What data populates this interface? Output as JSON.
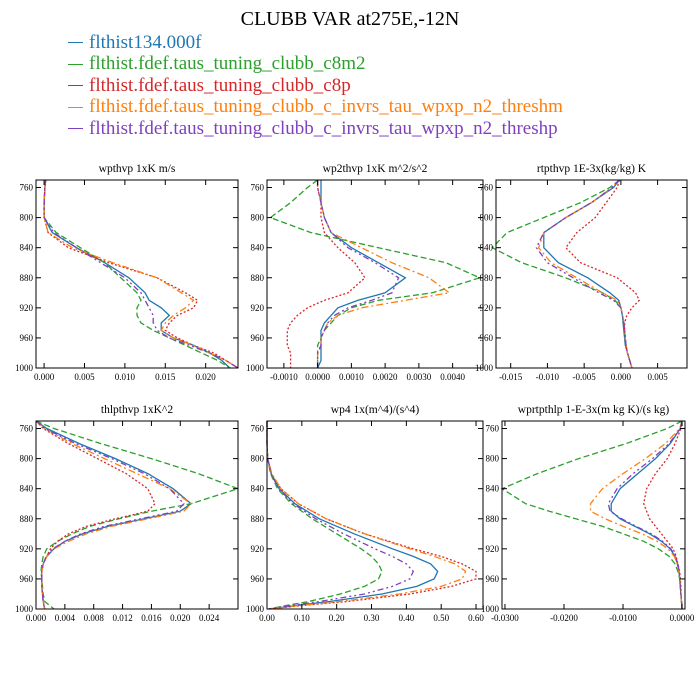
{
  "title": "CLUBB VAR at275E,-12N",
  "legend": [
    {
      "name": "flthist134.000f",
      "color": "#1f77b4"
    },
    {
      "name": "flthist.fdef.taus_tuning_clubb_c8m2",
      "color": "#2ca02c"
    },
    {
      "name": "flthist.fdef.taus_tuning_clubb_c8p",
      "color": "#d62728"
    },
    {
      "name": "flthist.fdef.taus_tuning_clubb_c_invrs_tau_wpxp_n2_threshm",
      "color": "#ff7f0e"
    },
    {
      "name": "flthist.fdef.taus_tuning_clubb_c_invrs_tau_wpxp_n2_threshp",
      "color": "#7f3fbf"
    }
  ],
  "chart_data": [
    {
      "type": "line",
      "title": "wpthvp  1xK m/s",
      "ylim": [
        1000,
        750
      ],
      "yticks": [
        "760",
        "800",
        "840",
        "880",
        "920",
        "960",
        "1000"
      ],
      "ytick_values": [
        760,
        800,
        840,
        880,
        920,
        960,
        1000
      ],
      "xlim": [
        -0.001,
        0.024
      ],
      "xticks": [
        "0.000",
        "0.005",
        "0.010",
        "0.015",
        "0.020"
      ],
      "xtick_values": [
        0.0,
        0.005,
        0.01,
        0.015,
        0.02
      ],
      "y": [
        750,
        760,
        780,
        800,
        820,
        840,
        860,
        880,
        900,
        910,
        920,
        930,
        940,
        950,
        960,
        970,
        980,
        990,
        1000
      ],
      "series": [
        {
          "values": [
            0.0002,
            0.0001,
            0.0,
            0.0,
            0.001,
            0.004,
            0.0075,
            0.0105,
            0.0125,
            0.013,
            0.0145,
            0.0155,
            0.0145,
            0.0145,
            0.016,
            0.0185,
            0.0205,
            0.022,
            0.023
          ]
        },
        {
          "values": [
            0.0002,
            0.0001,
            0.0,
            0.0,
            0.0015,
            0.0045,
            0.0075,
            0.0095,
            0.0115,
            0.012,
            0.0115,
            0.0115,
            0.012,
            0.0135,
            0.0155,
            0.0175,
            0.0195,
            0.0215,
            0.023
          ]
        },
        {
          "values": [
            0.0002,
            0.0001,
            0.0,
            0.0,
            0.0005,
            0.003,
            0.008,
            0.014,
            0.0175,
            0.019,
            0.0185,
            0.0165,
            0.0155,
            0.015,
            0.0165,
            0.0185,
            0.021,
            0.0225,
            0.024
          ]
        },
        {
          "values": [
            0.0002,
            0.0001,
            0.0,
            0.0,
            0.0005,
            0.0035,
            0.0085,
            0.014,
            0.017,
            0.0185,
            0.0175,
            0.016,
            0.015,
            0.0145,
            0.016,
            0.0185,
            0.0205,
            0.0225,
            0.024
          ]
        },
        {
          "values": [
            0.0002,
            0.0001,
            0.0,
            0.0,
            0.0012,
            0.004,
            0.007,
            0.01,
            0.012,
            0.0125,
            0.013,
            0.0135,
            0.0135,
            0.014,
            0.0155,
            0.018,
            0.0205,
            0.0225,
            0.024
          ]
        }
      ]
    },
    {
      "type": "line",
      "title": "wp2thvp  1xK m^2/s^2",
      "ylim": [
        1000,
        750
      ],
      "yticks": [
        "760",
        "800",
        "840",
        "880",
        "920",
        "960",
        "1000"
      ],
      "ytick_values": [
        760,
        800,
        840,
        880,
        920,
        960,
        1000
      ],
      "xlim": [
        -0.0015,
        0.0049
      ],
      "xticks": [
        "-0.0010",
        "0.0000",
        "0.0010",
        "0.0020",
        "0.0030",
        "0.0040"
      ],
      "xtick_values": [
        -0.001,
        0.0,
        0.001,
        0.002,
        0.003,
        0.004
      ],
      "y": [
        750,
        760,
        780,
        800,
        820,
        840,
        860,
        880,
        900,
        910,
        920,
        930,
        940,
        950,
        960,
        970,
        980,
        990,
        1000
      ],
      "series": [
        {
          "values": [
            0.0001,
            0.0001,
            0.0001,
            0.0002,
            0.0004,
            0.001,
            0.0018,
            0.0026,
            0.002,
            0.0012,
            0.0006,
            0.0004,
            0.0002,
            0.0001,
            0.0001,
            0.0001,
            0.0001,
            0.0001,
            0.0
          ]
        },
        {
          "values": [
            0.0,
            -0.0003,
            -0.0008,
            -0.0014,
            -0.0002,
            0.0018,
            0.0038,
            0.0048,
            0.0034,
            0.0018,
            0.001,
            0.0006,
            0.0004,
            0.0002,
            0.0001,
            0.0,
            0.0,
            0.0,
            0.0
          ]
        },
        {
          "values": [
            0.0,
            0.0,
            0.0001,
            0.0001,
            0.0002,
            0.0006,
            0.0011,
            0.0014,
            0.0009,
            0.0002,
            -0.0003,
            -0.0006,
            -0.0008,
            -0.0009,
            -0.0009,
            -0.0009,
            -0.0008,
            -0.0008,
            -0.0008
          ]
        },
        {
          "values": [
            0.0,
            0.0,
            0.0001,
            0.0002,
            0.0004,
            0.0013,
            0.0022,
            0.0033,
            0.0039,
            0.0026,
            0.0013,
            0.0006,
            0.0003,
            0.0002,
            0.0001,
            0.0001,
            0.0,
            0.0,
            0.0
          ]
        },
        {
          "values": [
            0.0,
            0.0,
            0.0001,
            0.0002,
            0.0004,
            0.0009,
            0.0017,
            0.0024,
            0.0022,
            0.0016,
            0.0009,
            0.0005,
            0.0003,
            0.0002,
            0.0001,
            0.0001,
            0.0,
            0.0,
            0.0
          ]
        }
      ]
    },
    {
      "type": "line",
      "title": "rtpthvp  1E-3x(kg/kg) K",
      "ylim": [
        1000,
        750
      ],
      "yticks": [
        "760",
        "800",
        "840",
        "880",
        "920",
        "960",
        "1000"
      ],
      "ytick_values": [
        760,
        800,
        840,
        880,
        920,
        960,
        1000
      ],
      "xlim": [
        -0.017,
        0.009
      ],
      "xticks": [
        "-0.015",
        "-0.010",
        "-0.005",
        "0.000",
        "0.005"
      ],
      "xtick_values": [
        -0.015,
        -0.01,
        -0.005,
        0.0,
        0.005
      ],
      "y": [
        750,
        760,
        780,
        800,
        820,
        840,
        860,
        880,
        900,
        910,
        920,
        930,
        940,
        950,
        960,
        970,
        980,
        990,
        1000
      ],
      "series": [
        {
          "values": [
            -0.0002,
            -0.001,
            -0.004,
            -0.0075,
            -0.0105,
            -0.0105,
            -0.0085,
            -0.0045,
            -0.0015,
            -0.0003,
            0.0,
            0.0002,
            0.0003,
            0.0004,
            0.0005,
            0.0006,
            0.0009,
            0.0012,
            0.0015
          ]
        },
        {
          "values": [
            -0.0002,
            -0.0015,
            -0.0055,
            -0.0105,
            -0.0155,
            -0.0175,
            -0.0135,
            -0.0075,
            -0.0025,
            -0.0008,
            0.0,
            0.0002,
            0.0004,
            0.0005,
            0.0006,
            0.0007,
            0.0009,
            0.0012,
            0.0015
          ]
        },
        {
          "values": [
            -0.0002,
            -0.0005,
            -0.002,
            -0.0035,
            -0.006,
            -0.0075,
            -0.0055,
            -0.0005,
            0.002,
            0.0025,
            0.0015,
            0.0008,
            0.0005,
            0.0005,
            0.0006,
            0.0007,
            0.0009,
            0.0012,
            0.0015
          ]
        },
        {
          "values": [
            -0.0002,
            -0.0012,
            -0.004,
            -0.0075,
            -0.0105,
            -0.0112,
            -0.0095,
            -0.006,
            -0.0025,
            -0.0005,
            0.0,
            0.0002,
            0.0004,
            0.0005,
            0.0006,
            0.0007,
            0.0009,
            0.0012,
            0.0015
          ]
        },
        {
          "values": [
            -0.0002,
            -0.0012,
            -0.004,
            -0.0075,
            -0.0105,
            -0.0115,
            -0.01,
            -0.0065,
            -0.003,
            -0.001,
            0.0,
            0.0002,
            0.0004,
            0.0005,
            0.0006,
            0.0007,
            0.0009,
            0.0012,
            0.0015
          ]
        }
      ]
    },
    {
      "type": "line",
      "title": "thlpthvp  1xK^2",
      "ylim": [
        1000,
        750
      ],
      "yticks": [
        "760",
        "800",
        "840",
        "880",
        "920",
        "960",
        "1000"
      ],
      "ytick_values": [
        760,
        800,
        840,
        880,
        920,
        960,
        1000
      ],
      "xlim": [
        0.0,
        0.028
      ],
      "xticks": [
        "0.000",
        "0.004",
        "0.008",
        "0.012",
        "0.016",
        "0.020",
        "0.024"
      ],
      "xtick_values": [
        0.0,
        0.004,
        0.008,
        0.012,
        0.016,
        0.02,
        0.024
      ],
      "y": [
        750,
        760,
        780,
        800,
        820,
        840,
        860,
        870,
        880,
        890,
        900,
        910,
        920,
        930,
        940,
        950,
        960,
        970,
        980,
        990,
        1000
      ],
      "series": [
        {
          "values": [
            0.0,
            0.0015,
            0.006,
            0.011,
            0.0155,
            0.019,
            0.0215,
            0.02,
            0.015,
            0.01,
            0.0065,
            0.004,
            0.0025,
            0.0015,
            0.001,
            0.0008,
            0.0008,
            0.0008,
            0.0009,
            0.001,
            0.0012
          ]
        },
        {
          "values": [
            0.0,
            0.0025,
            0.009,
            0.016,
            0.0225,
            0.028,
            0.0215,
            0.016,
            0.0115,
            0.0075,
            0.005,
            0.003,
            0.0015,
            0.001,
            0.0008,
            0.0007,
            0.0008,
            0.0009,
            0.001,
            0.0012,
            0.0025
          ]
        },
        {
          "values": [
            0.0,
            0.001,
            0.0045,
            0.0085,
            0.0125,
            0.0155,
            0.0165,
            0.0155,
            0.011,
            0.007,
            0.0045,
            0.003,
            0.002,
            0.0015,
            0.001,
            0.0008,
            0.0008,
            0.0008,
            0.0009,
            0.001,
            0.0012
          ]
        },
        {
          "values": [
            0.0,
            0.0012,
            0.005,
            0.0095,
            0.014,
            0.0185,
            0.0215,
            0.0205,
            0.0155,
            0.0105,
            0.007,
            0.0045,
            0.0025,
            0.0015,
            0.001,
            0.0008,
            0.0008,
            0.0008,
            0.0009,
            0.001,
            0.0012
          ]
        },
        {
          "values": [
            0.0,
            0.0012,
            0.0055,
            0.0105,
            0.015,
            0.0185,
            0.0205,
            0.0195,
            0.0145,
            0.0095,
            0.0062,
            0.004,
            0.0023,
            0.0014,
            0.001,
            0.0008,
            0.0008,
            0.0008,
            0.0009,
            0.001,
            0.0012
          ]
        }
      ]
    },
    {
      "type": "line",
      "title": "wp4  1x(m^4)/(s^4)",
      "ylim": [
        1000,
        750
      ],
      "yticks": [
        "760",
        "800",
        "840",
        "880",
        "920",
        "960",
        "1000"
      ],
      "ytick_values": [
        760,
        800,
        840,
        880,
        920,
        960,
        1000
      ],
      "xlim": [
        0.0,
        0.62
      ],
      "xticks": [
        "0.00",
        "0.10",
        "0.20",
        "0.30",
        "0.40",
        "0.50",
        "0.60"
      ],
      "xtick_values": [
        0.0,
        0.1,
        0.2,
        0.3,
        0.4,
        0.5,
        0.6
      ],
      "y": [
        750,
        760,
        780,
        800,
        820,
        840,
        860,
        880,
        900,
        920,
        930,
        940,
        950,
        960,
        970,
        980,
        990,
        995,
        1000
      ],
      "series": [
        {
          "values": [
            0.0,
            0.0,
            0.0,
            0.002,
            0.012,
            0.035,
            0.08,
            0.15,
            0.25,
            0.36,
            0.42,
            0.47,
            0.49,
            0.48,
            0.43,
            0.33,
            0.18,
            0.09,
            0.005
          ]
        },
        {
          "values": [
            0.0,
            0.0,
            0.0,
            0.002,
            0.01,
            0.03,
            0.07,
            0.13,
            0.2,
            0.27,
            0.3,
            0.32,
            0.33,
            0.32,
            0.28,
            0.21,
            0.12,
            0.06,
            0.005
          ]
        },
        {
          "values": [
            0.0,
            0.0,
            0.0,
            0.002,
            0.012,
            0.04,
            0.09,
            0.17,
            0.28,
            0.42,
            0.5,
            0.56,
            0.6,
            0.6,
            0.53,
            0.41,
            0.23,
            0.11,
            0.005
          ]
        },
        {
          "values": [
            0.0,
            0.0,
            0.0,
            0.002,
            0.014,
            0.04,
            0.09,
            0.17,
            0.28,
            0.41,
            0.48,
            0.54,
            0.57,
            0.56,
            0.5,
            0.38,
            0.21,
            0.1,
            0.005
          ]
        },
        {
          "values": [
            0.0,
            0.0,
            0.0,
            0.002,
            0.012,
            0.033,
            0.075,
            0.14,
            0.22,
            0.31,
            0.36,
            0.4,
            0.42,
            0.41,
            0.36,
            0.28,
            0.15,
            0.075,
            0.005
          ]
        }
      ]
    },
    {
      "type": "line",
      "title": "wprtpthlp  1-E-3x(m kg K)/(s kg)",
      "ylim": [
        1000,
        750
      ],
      "yticks": [
        "760",
        "800",
        "840",
        "880",
        "920",
        "960",
        "1000"
      ],
      "ytick_values": [
        760,
        800,
        840,
        880,
        920,
        960,
        1000
      ],
      "xlim": [
        -0.0305,
        0.0005
      ],
      "xticks": [
        "-0.0300",
        "-0.0200",
        "-0.0100",
        "0.0000"
      ],
      "xtick_values": [
        -0.03,
        -0.02,
        -0.01,
        0.0
      ],
      "y": [
        750,
        760,
        780,
        800,
        820,
        840,
        860,
        870,
        880,
        890,
        900,
        910,
        920,
        930,
        940,
        950,
        960,
        970,
        980,
        990,
        1000
      ],
      "series": [
        {
          "values": [
            0.0,
            -0.0003,
            -0.002,
            -0.0045,
            -0.0075,
            -0.0105,
            -0.012,
            -0.012,
            -0.0105,
            -0.008,
            -0.0055,
            -0.0035,
            -0.002,
            -0.0012,
            -0.0008,
            -0.0005,
            -0.0004,
            -0.0003,
            -0.0002,
            -0.0001,
            0.0
          ]
        },
        {
          "values": [
            0.0,
            -0.0025,
            -0.0095,
            -0.0175,
            -0.0245,
            -0.0305,
            -0.0265,
            -0.0225,
            -0.018,
            -0.0135,
            -0.01,
            -0.0065,
            -0.004,
            -0.0022,
            -0.0012,
            -0.0007,
            -0.0004,
            -0.0003,
            -0.0002,
            -0.0001,
            0.0
          ]
        },
        {
          "values": [
            0.0,
            -0.0002,
            -0.0012,
            -0.0025,
            -0.0045,
            -0.006,
            -0.0065,
            -0.006,
            -0.0055,
            -0.0045,
            -0.0035,
            -0.0025,
            -0.0015,
            -0.001,
            -0.0007,
            -0.0004,
            -0.0003,
            -0.0002,
            -0.0002,
            -0.0001,
            0.0
          ]
        },
        {
          "values": [
            0.0,
            -0.0004,
            -0.0028,
            -0.0062,
            -0.01,
            -0.0135,
            -0.0155,
            -0.0155,
            -0.013,
            -0.01,
            -0.0068,
            -0.0042,
            -0.0024,
            -0.0013,
            -0.0008,
            -0.0005,
            -0.0004,
            -0.0003,
            -0.0002,
            -0.0001,
            0.0
          ]
        },
        {
          "values": [
            0.0,
            -0.0003,
            -0.0022,
            -0.005,
            -0.0083,
            -0.011,
            -0.0125,
            -0.0122,
            -0.0102,
            -0.0078,
            -0.0052,
            -0.0033,
            -0.0019,
            -0.0011,
            -0.0007,
            -0.0005,
            -0.0004,
            -0.0003,
            -0.0002,
            -0.0001,
            0.0
          ]
        }
      ]
    }
  ]
}
